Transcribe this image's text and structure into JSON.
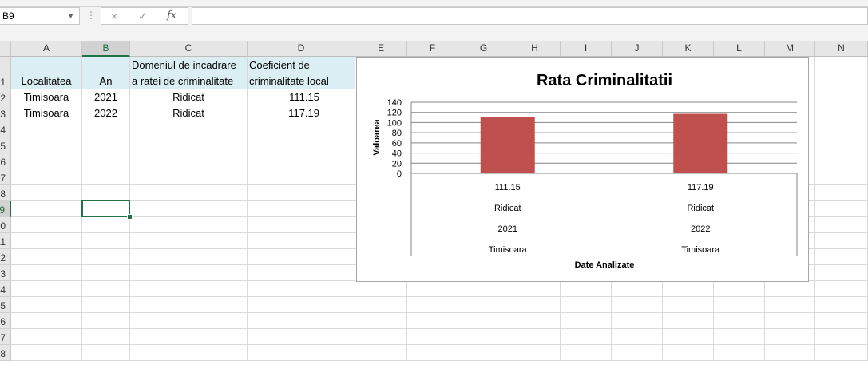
{
  "formula_bar": {
    "name_box": "B9",
    "cancel_icon": "×",
    "enter_icon": "✓",
    "function_icon": "fx",
    "formula": ""
  },
  "columns": [
    "A",
    "B",
    "C",
    "D",
    "E",
    "F",
    "G",
    "H",
    "I",
    "J",
    "K",
    "L",
    "M",
    "N"
  ],
  "rows": [
    "1",
    "2",
    "3",
    "4",
    "5",
    "6",
    "7",
    "8",
    "9",
    "10",
    "11",
    "12",
    "13",
    "14",
    "15",
    "16",
    "17",
    "18"
  ],
  "table": {
    "headers": {
      "a": "Localitatea",
      "b": "An",
      "c_line1": "Domeniul de incadrare",
      "c_line2": "a ratei de criminalitate",
      "d_line1": "Coeficient de",
      "d_line2": "criminalitate local"
    },
    "rows": [
      {
        "localitate": "Timisoara",
        "an": "2021",
        "domeniu": "Ridicat",
        "coef": "111.15"
      },
      {
        "localitate": "Timisoara",
        "an": "2022",
        "domeniu": "Ridicat",
        "coef": "117.19"
      }
    ]
  },
  "selected_cell": "B9",
  "chart_data": {
    "type": "bar",
    "title": "Rata Criminalitatii",
    "ylabel": "Valoarea",
    "xlabel": "Date Analizate",
    "ylim": [
      0,
      140
    ],
    "yticks": [
      "0",
      "20",
      "40",
      "60",
      "80",
      "100",
      "120",
      "140"
    ],
    "categories": [
      {
        "levels": [
          "111.15",
          "Ridicat",
          "2021",
          "Timisoara"
        ]
      },
      {
        "levels": [
          "117.19",
          "Ridicat",
          "2022",
          "Timisoara"
        ]
      }
    ],
    "values": [
      111.15,
      117.19
    ],
    "bar_color": "#c0504d",
    "grid": true
  }
}
